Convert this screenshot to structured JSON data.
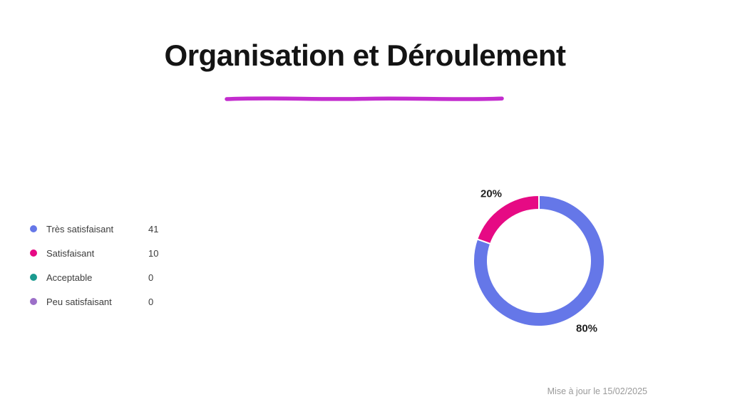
{
  "slide": {
    "title": "Organisation et Déroulement",
    "footer_note": "Mise à jour le 15/02/2025"
  },
  "theme": {
    "background": "#ffffff",
    "title_color": "#141414",
    "underline_accent": "#c32cce",
    "footer_color": "#9a9a9a",
    "label_color": "#3c3c3c"
  },
  "chart_data": {
    "type": "pie",
    "variant": "donut",
    "title": "",
    "categories": [
      "Très satisfaisant",
      "Satisfaisant",
      "Acceptable",
      "Peu satisfaisant"
    ],
    "values": [
      41,
      10,
      0,
      0
    ],
    "colors": [
      "#6577e8",
      "#e60a84",
      "#1a9a8f",
      "#9c6fc8"
    ],
    "data_labels": [
      "80%",
      "20%"
    ],
    "legend_position": "left",
    "start_angle_deg": 0,
    "direction": "clockwise",
    "donut_hole_outer_radius": 92,
    "donut_hole_inner_radius": 72
  },
  "legend": {
    "items": [
      {
        "label": "Très satisfaisant",
        "value": "41",
        "color": "#6577e8"
      },
      {
        "label": "Satisfaisant",
        "value": "10",
        "color": "#e60a84"
      },
      {
        "label": "Acceptable",
        "value": "0",
        "color": "#1a9a8f"
      },
      {
        "label": "Peu satisfaisant",
        "value": "0",
        "color": "#9c6fc8"
      }
    ]
  }
}
